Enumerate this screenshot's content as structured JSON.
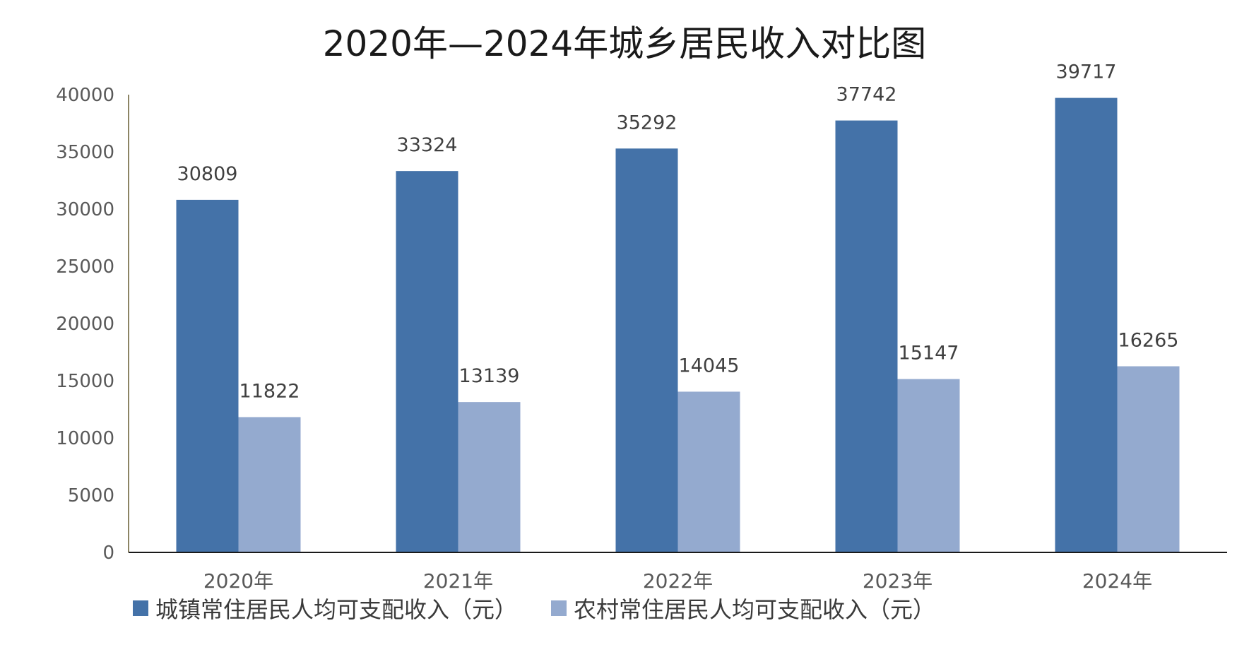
{
  "chart_data": {
    "type": "bar",
    "title": "2020年—2024年城乡居民收入对比图",
    "categories": [
      "2020年",
      "2021年",
      "2022年",
      "2023年",
      "2024年"
    ],
    "series": [
      {
        "name": "城镇常住居民人均可支配收入（元）",
        "values": [
          30809,
          33324,
          35292,
          37742,
          39717
        ],
        "color": "#4472A8"
      },
      {
        "name": "农村常住居民人均可支配收入（元）",
        "values": [
          11822,
          13139,
          14045,
          15147,
          16265
        ],
        "color": "#94AACF"
      }
    ],
    "ylim": [
      0,
      40000
    ],
    "yticks": [
      0,
      5000,
      10000,
      15000,
      20000,
      25000,
      30000,
      35000,
      40000
    ],
    "xlabel": "",
    "ylabel": "",
    "grid": false,
    "legend_position": "bottom-left",
    "data_labels": true
  }
}
